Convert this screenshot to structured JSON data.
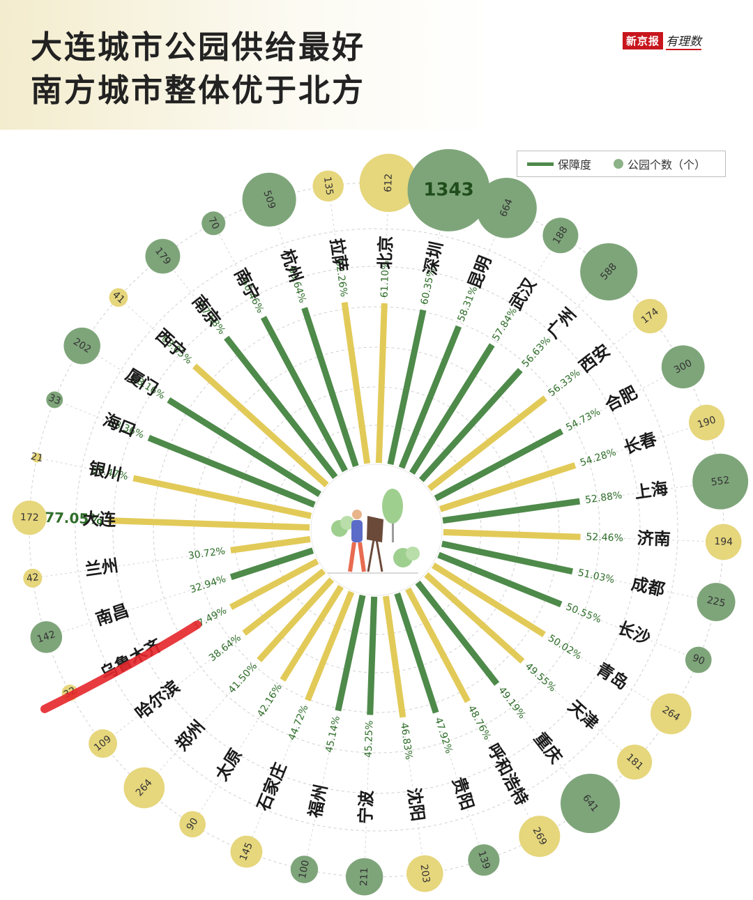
{
  "header": {
    "title_line1": "大连城市公园供给最好",
    "title_line2": "南方城市整体优于北方",
    "brand": "新京报",
    "brand_sub": "有理数"
  },
  "legend": {
    "bar_label": "保障度",
    "dot_label": "公园个数（个）"
  },
  "colors": {
    "green": "#4e8a4a",
    "yellow": "#e2ca58",
    "dot_green": "#7ea57a",
    "dot_yellow": "#e6d67c",
    "label_green": "#2f6e2a",
    "highlight": "#e5262b"
  },
  "chart_data": {
    "type": "radial-bar",
    "series": [
      {
        "name": "保障度",
        "unit": "%"
      },
      {
        "name": "公园个数（个）",
        "unit": "个"
      }
    ],
    "cities": [
      {
        "city": "大连",
        "pct": "77.05%",
        "value": 77.05,
        "parks": "172",
        "color": "yellow"
      },
      {
        "city": "银川",
        "pct": "69.47%",
        "value": 69.47,
        "parks": "21",
        "color": "yellow"
      },
      {
        "city": "海口",
        "pct": "68.36%",
        "value": 68.36,
        "parks": "33",
        "color": "green"
      },
      {
        "city": "厦门",
        "pct": "68.16%",
        "value": 68.16,
        "parks": "202",
        "color": "green"
      },
      {
        "city": "西宁",
        "pct": "68.05%",
        "value": 68.05,
        "parks": "41",
        "color": "yellow"
      },
      {
        "city": "南京",
        "pct": "67.68%",
        "value": 67.68,
        "parks": "179",
        "color": "green"
      },
      {
        "city": "南宁",
        "pct": "66.46%",
        "value": 66.46,
        "parks": "70",
        "color": "green"
      },
      {
        "city": "杭州",
        "pct": "63.64%",
        "value": 63.64,
        "parks": "509",
        "color": "green"
      },
      {
        "city": "拉萨",
        "pct": "62.26%",
        "value": 62.26,
        "parks": "135",
        "color": "yellow"
      },
      {
        "city": "北京",
        "pct": "61.10%",
        "value": 61.1,
        "parks": "612",
        "color": "yellow"
      },
      {
        "city": "深圳",
        "pct": "60.35%",
        "value": 60.35,
        "parks": "1343",
        "color": "green"
      },
      {
        "city": "昆明",
        "pct": "58.31%",
        "value": 58.31,
        "parks": "664",
        "color": "green"
      },
      {
        "city": "武汉",
        "pct": "57.84%",
        "value": 57.84,
        "parks": "188",
        "color": "green"
      },
      {
        "city": "广州",
        "pct": "56.63%",
        "value": 56.63,
        "parks": "588",
        "color": "green"
      },
      {
        "city": "西安",
        "pct": "56.33%",
        "value": 56.33,
        "parks": "174",
        "color": "yellow"
      },
      {
        "city": "合肥",
        "pct": "54.73%",
        "value": 54.73,
        "parks": "300",
        "color": "green"
      },
      {
        "city": "长春",
        "pct": "54.28%",
        "value": 54.28,
        "parks": "190",
        "color": "yellow"
      },
      {
        "city": "上海",
        "pct": "52.88%",
        "value": 52.88,
        "parks": "552",
        "color": "green"
      },
      {
        "city": "济南",
        "pct": "52.46%",
        "value": 52.46,
        "parks": "194",
        "color": "yellow"
      },
      {
        "city": "成都",
        "pct": "51.03%",
        "value": 51.03,
        "parks": "225",
        "color": "green"
      },
      {
        "city": "长沙",
        "pct": "50.55%",
        "value": 50.55,
        "parks": "90",
        "color": "green"
      },
      {
        "city": "青岛",
        "pct": "50.02%",
        "value": 50.02,
        "parks": "264",
        "color": "yellow"
      },
      {
        "city": "天津",
        "pct": "49.55%",
        "value": 49.55,
        "parks": "181",
        "color": "yellow"
      },
      {
        "city": "重庆",
        "pct": "49.19%",
        "value": 49.19,
        "parks": "641",
        "color": "green"
      },
      {
        "city": "呼和浩特",
        "pct": "48.76%",
        "value": 48.76,
        "parks": "269",
        "color": "yellow"
      },
      {
        "city": "贵阳",
        "pct": "47.92%",
        "value": 47.92,
        "parks": "139",
        "color": "green"
      },
      {
        "city": "沈阳",
        "pct": "46.83%",
        "value": 46.83,
        "parks": "203",
        "color": "yellow"
      },
      {
        "city": "宁波",
        "pct": "45.25%",
        "value": 45.25,
        "parks": "211",
        "color": "green"
      },
      {
        "city": "福州",
        "pct": "45.14%",
        "value": 45.14,
        "parks": "100",
        "color": "green"
      },
      {
        "city": "石家庄",
        "pct": "44.72%",
        "value": 44.72,
        "parks": "145",
        "color": "yellow"
      },
      {
        "city": "太原",
        "pct": "42.16%",
        "value": 42.16,
        "parks": "90",
        "color": "yellow"
      },
      {
        "city": "郑州",
        "pct": "41.50%",
        "value": 41.5,
        "parks": "264",
        "color": "yellow"
      },
      {
        "city": "哈尔滨",
        "pct": "38.64%",
        "value": 38.64,
        "parks": "109",
        "color": "yellow"
      },
      {
        "city": "乌鲁木齐",
        "pct": "37.49%",
        "value": 37.49,
        "parks": "32",
        "color": "yellow"
      },
      {
        "city": "南昌",
        "pct": "32.94%",
        "value": 32.94,
        "parks": "142",
        "color": "green"
      },
      {
        "city": "兰州",
        "pct": "30.72%",
        "value": 30.72,
        "parks": "42",
        "color": "yellow"
      }
    ],
    "highlighted_city": "重庆",
    "legend_position": "top-right"
  }
}
